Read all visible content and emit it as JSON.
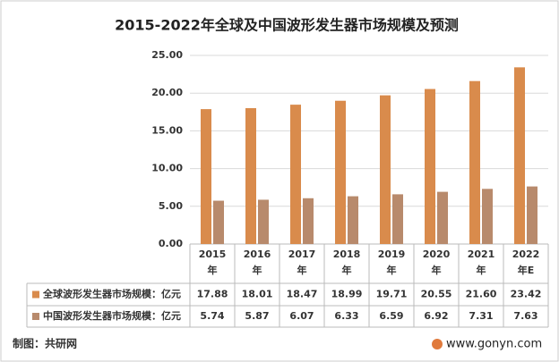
{
  "chart_data": {
    "type": "bar",
    "title": "2015-2022年全球及中国波形发生器市场规模及预测",
    "categories": [
      "2015年",
      "2016年",
      "2017年",
      "2018年",
      "2019年",
      "2020年",
      "2021年",
      "2022年E"
    ],
    "series": [
      {
        "name": "全球波形发生器市场规模：亿元",
        "color": "#d98b4c",
        "values": [
          17.88,
          18.01,
          18.47,
          18.99,
          19.71,
          20.55,
          21.6,
          23.42
        ],
        "value_labels": [
          "17.88",
          "18.01",
          "18.47",
          "18.99",
          "19.71",
          "20.55",
          "21.60",
          "23.42"
        ]
      },
      {
        "name": "中国波形发生器市场规模：亿元",
        "color": "#b88a6c",
        "values": [
          5.74,
          5.87,
          6.07,
          6.33,
          6.59,
          6.92,
          7.31,
          7.63
        ]
      }
    ],
    "ylim": [
      0,
      25
    ],
    "yticks": [
      {
        "value": 0,
        "label": "0.00"
      },
      {
        "value": 5,
        "label": "5.00"
      },
      {
        "value": 10,
        "label": "10.00"
      },
      {
        "value": 15,
        "label": "15.00"
      },
      {
        "value": 20,
        "label": "20.00"
      },
      {
        "value": 25,
        "label": "25.00"
      }
    ],
    "grid": true,
    "source": "制图：共研网",
    "website": "www.gonyn.com"
  }
}
